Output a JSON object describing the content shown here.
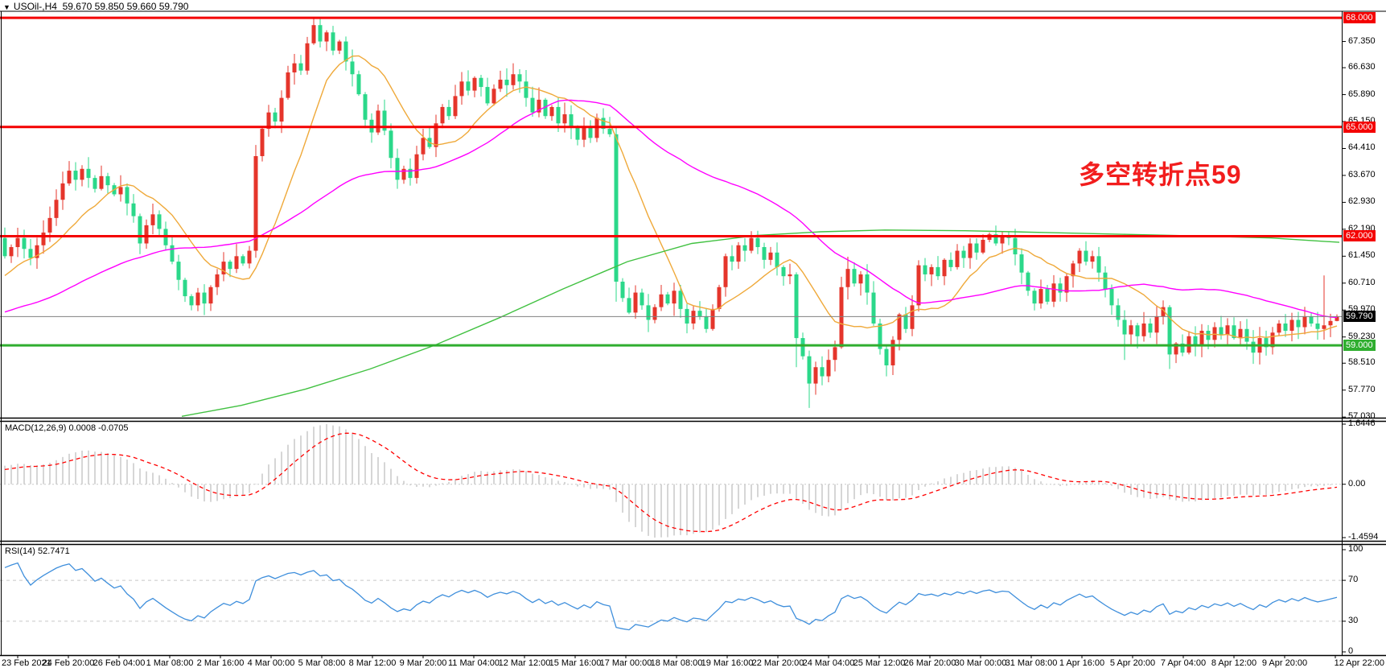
{
  "window": {
    "title_symbol": "USOil-,H4",
    "title_ohlc": "59.670 59.850 59.660 59.790"
  },
  "annotation": {
    "text": "多空转折点59",
    "color": "#f21d1d"
  },
  "price_axis": {
    "ticks": [
      {
        "label": "67.350",
        "price": 67.35
      },
      {
        "label": "66.630",
        "price": 66.63
      },
      {
        "label": "65.890",
        "price": 65.89
      },
      {
        "label": "65.150",
        "price": 65.15
      },
      {
        "label": "64.410",
        "price": 64.41
      },
      {
        "label": "63.670",
        "price": 63.67
      },
      {
        "label": "62.930",
        "price": 62.93
      },
      {
        "label": "62.190",
        "price": 62.19
      },
      {
        "label": "61.450",
        "price": 61.45
      },
      {
        "label": "60.710",
        "price": 60.71
      },
      {
        "label": "59.970",
        "price": 59.97
      },
      {
        "label": "59.230",
        "price": 59.23
      },
      {
        "label": "58.510",
        "price": 58.51
      },
      {
        "label": "57.770",
        "price": 57.77
      },
      {
        "label": "57.030",
        "price": 57.03
      }
    ],
    "badges": [
      {
        "label": "68.000",
        "price": 68.0,
        "bg": "#f40000"
      },
      {
        "label": "65.000",
        "price": 65.0,
        "bg": "#f40000"
      },
      {
        "label": "62.000",
        "price": 62.0,
        "bg": "#f40000"
      },
      {
        "label": "59.790",
        "price": 59.79,
        "bg": "#000000"
      },
      {
        "label": "59.000",
        "price": 59.0,
        "bg": "#2fae2f"
      }
    ]
  },
  "time_axis": {
    "labels": [
      "23 Feb 2021",
      "24 Feb 20:00",
      "26 Feb 04:00",
      "1 Mar 08:00",
      "2 Mar 16:00",
      "4 Mar 00:00",
      "5 Mar 08:00",
      "8 Mar 12:00",
      "9 Mar 20:00",
      "11 Mar 04:00",
      "12 Mar 12:00",
      "15 Mar 16:00",
      "17 Mar 00:00",
      "18 Mar 08:00",
      "19 Mar 16:00",
      "22 Mar 20:00",
      "24 Mar 04:00",
      "25 Mar 12:00",
      "26 Mar 20:00",
      "30 Mar 00:00",
      "31 Mar 08:00",
      "1 Apr 16:00",
      "5 Apr 20:00",
      "7 Apr 04:00",
      "8 Apr 12:00",
      "9 Apr 20:00",
      "12 Apr 22:00"
    ]
  },
  "panels": {
    "macd": {
      "label": "MACD(12,26,9) 0.0008 -0.0705",
      "max_label": "1.6446",
      "zero_label": "0.00",
      "min_label": "-1.4594"
    },
    "rsi": {
      "label": "RSI(14) 52.7471",
      "top_label": "100",
      "upper_label": "70",
      "lower_label": "30",
      "bottom_label": "0"
    }
  },
  "chart_data": {
    "type": "candlestick",
    "symbol": "USOil-",
    "timeframe": "H4",
    "title": "USOil-,H4 59.670 59.850 59.660 59.790",
    "price_range": [
      56.99,
      68.49
    ],
    "levels": {
      "resistance": [
        68.0,
        65.0,
        62.0
      ],
      "support": [
        59.0
      ],
      "current_price": 59.79
    },
    "first_open": 61.95,
    "closes": [
      61.45,
      61.7,
      61.95,
      61.65,
      61.4,
      61.75,
      62.1,
      62.5,
      63.0,
      63.45,
      63.8,
      63.55,
      63.85,
      63.6,
      63.3,
      63.65,
      63.4,
      63.15,
      63.35,
      62.9,
      62.55,
      61.8,
      62.3,
      62.6,
      62.2,
      61.75,
      61.3,
      60.8,
      60.35,
      60.1,
      60.45,
      60.15,
      60.6,
      60.95,
      61.3,
      61.1,
      61.45,
      61.25,
      61.6,
      64.2,
      64.95,
      65.4,
      65.15,
      65.8,
      66.5,
      66.75,
      66.55,
      67.3,
      67.8,
      67.35,
      67.6,
      67.1,
      67.35,
      66.8,
      66.45,
      65.9,
      65.2,
      64.85,
      65.45,
      64.9,
      64.15,
      63.55,
      63.85,
      63.6,
      64.25,
      64.7,
      64.45,
      65.1,
      65.55,
      65.3,
      65.85,
      66.25,
      66.0,
      66.35,
      66.1,
      65.65,
      66.05,
      66.3,
      66.15,
      66.45,
      66.25,
      65.8,
      65.4,
      65.75,
      65.3,
      65.55,
      65.1,
      65.35,
      65.0,
      64.65,
      65.0,
      64.7,
      65.25,
      64.95,
      64.8,
      60.75,
      60.3,
      59.9,
      60.45,
      60.1,
      59.7,
      60.05,
      60.4,
      60.15,
      60.5,
      60.0,
      59.6,
      59.95,
      59.8,
      59.45,
      60.0,
      60.6,
      61.45,
      61.3,
      61.75,
      61.6,
      61.95,
      61.7,
      61.35,
      61.55,
      61.15,
      60.9,
      60.95,
      59.2,
      58.7,
      57.95,
      58.4,
      58.15,
      58.6,
      58.95,
      60.6,
      61.1,
      60.7,
      60.95,
      60.45,
      59.6,
      58.9,
      58.45,
      59.15,
      59.85,
      59.45,
      60.1,
      61.2,
      60.95,
      61.15,
      60.9,
      61.35,
      61.15,
      61.6,
      61.4,
      61.8,
      61.55,
      61.9,
      62.05,
      61.8,
      62.0,
      61.95,
      61.5,
      61.0,
      60.5,
      60.15,
      60.55,
      60.2,
      60.7,
      60.45,
      60.9,
      61.25,
      61.6,
      61.3,
      61.45,
      61.0,
      60.55,
      60.1,
      59.7,
      59.3,
      59.55,
      59.25,
      59.6,
      59.35,
      59.8,
      60.05,
      58.75,
      59.05,
      58.8,
      59.25,
      59.0,
      59.4,
      59.15,
      59.5,
      59.3,
      59.55,
      59.2,
      59.45,
      59.1,
      58.8,
      59.2,
      58.95,
      59.35,
      59.6,
      59.4,
      59.7,
      59.5,
      59.8,
      59.6,
      59.45,
      59.55,
      59.67,
      59.79
    ],
    "pre_closes": [
      59.0,
      59.05,
      59.1,
      59.05,
      59.15,
      59.2,
      59.1,
      59.25,
      59.3,
      59.2,
      59.35,
      59.4,
      59.3,
      59.45,
      59.5,
      59.4,
      59.55,
      59.6,
      59.5,
      59.65,
      59.7,
      59.6,
      59.75,
      59.8,
      59.7,
      59.85,
      59.9,
      59.8,
      59.95,
      60.0,
      59.9,
      59.95,
      60.0,
      59.9,
      60.0,
      60.05,
      60.0,
      60.1,
      60.2,
      60.35,
      60.5,
      60.7,
      60.9,
      61.1,
      61.25,
      61.4,
      61.5,
      61.55
    ],
    "wick_overrides": {
      "48": {
        "high": 67.98
      },
      "61": {
        "low": 63.3
      },
      "95": {
        "low": 60.2
      },
      "123": {
        "low": 58.4
      },
      "125": {
        "low": 57.28
      },
      "174": {
        "low": 58.6
      },
      "181": {
        "low": 58.35
      },
      "205": {
        "high": 60.92
      },
      "207": {
        "high": 59.85,
        "low": 59.66
      }
    },
    "ma_green_points": [
      [
        226,
        57.05
      ],
      [
        300,
        57.35
      ],
      [
        380,
        57.8
      ],
      [
        460,
        58.35
      ],
      [
        540,
        59.0
      ],
      [
        620,
        59.75
      ],
      [
        700,
        60.55
      ],
      [
        780,
        61.3
      ],
      [
        860,
        61.8
      ],
      [
        940,
        62.02
      ],
      [
        1020,
        62.12
      ],
      [
        1100,
        62.17
      ],
      [
        1200,
        62.15
      ],
      [
        1300,
        62.1
      ],
      [
        1400,
        62.05
      ],
      [
        1500,
        62.0
      ],
      [
        1580,
        61.95
      ],
      [
        1665,
        61.83
      ]
    ],
    "indicators": {
      "macd_params": "12,26,9",
      "macd_values": [
        0.0008,
        -0.0705
      ],
      "macd_range": [
        1.6446,
        -1.4594
      ],
      "rsi_params": "14",
      "rsi_value": 52.7471
    },
    "colors": {
      "candle_up": "#e5352b",
      "candle_down": "#2bd88a",
      "level_red": "#f40000",
      "level_green": "#2fae2f",
      "current_line": "#808080",
      "ma_fast": "#efa93a",
      "ma_mid": "#ff00ff",
      "ma_slow": "#41c141",
      "macd_bar": "#c4c4c4",
      "macd_signal": "#ff0000",
      "rsi_line": "#3f8fdc",
      "grid_dash": "#c8c8c8"
    }
  }
}
